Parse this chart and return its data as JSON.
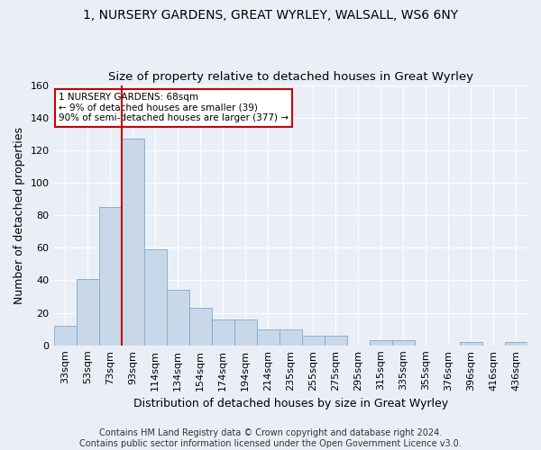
{
  "title": "1, NURSERY GARDENS, GREAT WYRLEY, WALSALL, WS6 6NY",
  "subtitle": "Size of property relative to detached houses in Great Wyrley",
  "xlabel": "Distribution of detached houses by size in Great Wyrley",
  "ylabel": "Number of detached properties",
  "bar_color": "#c8d8e8",
  "bar_edge_color": "#7aaacc",
  "bar_heights": [
    12,
    41,
    85,
    127,
    59,
    34,
    23,
    16,
    16,
    10,
    10,
    6,
    6,
    0,
    3,
    3,
    0,
    0,
    2,
    0,
    2
  ],
  "x_labels": [
    "33sqm",
    "53sqm",
    "73sqm",
    "93sqm",
    "114sqm",
    "134sqm",
    "154sqm",
    "174sqm",
    "194sqm",
    "214sqm",
    "235sqm",
    "255sqm",
    "275sqm",
    "295sqm",
    "315sqm",
    "335sqm",
    "355sqm",
    "376sqm",
    "396sqm",
    "416sqm",
    "436sqm"
  ],
  "ylim": [
    0,
    160
  ],
  "yticks": [
    0,
    20,
    40,
    60,
    80,
    100,
    120,
    140,
    160
  ],
  "vline_x": 2.5,
  "vline_color": "#cc0000",
  "annotation_line1": "1 NURSERY GARDENS: 68sqm",
  "annotation_line2": "← 9% of detached houses are smaller (39)",
  "annotation_line3": "90% of semi-detached houses are larger (377) →",
  "annotation_box_color": "#ffffff",
  "annotation_box_edge_color": "#cc0000",
  "footer_text": "Contains HM Land Registry data © Crown copyright and database right 2024.\nContains public sector information licensed under the Open Government Licence v3.0.",
  "background_color": "#eaeff7",
  "grid_color": "#ffffff",
  "title_fontsize": 10,
  "subtitle_fontsize": 9.5,
  "label_fontsize": 9,
  "tick_fontsize": 8,
  "footer_fontsize": 7
}
